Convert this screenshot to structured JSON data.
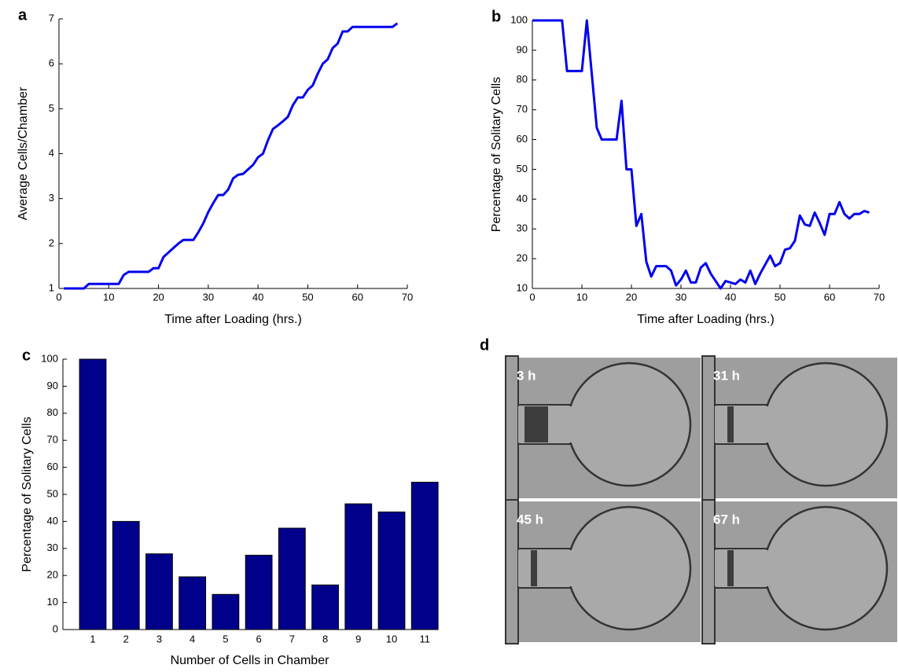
{
  "chart_data": [
    {
      "type": "line",
      "panel_label": "a",
      "xlabel": "Time after Loading (hrs.)",
      "ylabel": "Average Cells/Chamber",
      "xlim": [
        0,
        70
      ],
      "xticks": [
        0,
        10,
        20,
        30,
        40,
        50,
        60,
        70
      ],
      "ylim": [
        1,
        7
      ],
      "yticks": [
        1,
        2,
        3,
        4,
        5,
        6,
        7
      ],
      "series": [
        {
          "color": "#0000ee",
          "x": [
            1,
            2,
            3,
            4,
            5,
            6,
            7,
            8,
            9,
            10,
            11,
            12,
            13,
            14,
            15,
            16,
            17,
            18,
            19,
            20,
            21,
            22,
            23,
            24,
            25,
            26,
            27,
            28,
            29,
            30,
            31,
            32,
            33,
            34,
            35,
            36,
            37,
            38,
            39,
            40,
            41,
            42,
            43,
            44,
            45,
            46,
            47,
            48,
            49,
            50,
            51,
            52,
            53,
            54,
            55,
            56,
            57,
            58,
            59,
            60,
            61,
            62,
            63,
            64,
            65,
            66,
            67,
            68
          ],
          "values": [
            1.0,
            1.0,
            1.0,
            1.0,
            1.0,
            1.1,
            1.1,
            1.1,
            1.1,
            1.1,
            1.1,
            1.1,
            1.3,
            1.37,
            1.37,
            1.37,
            1.37,
            1.37,
            1.45,
            1.45,
            1.7,
            1.8,
            1.9,
            2.0,
            2.08,
            2.08,
            2.08,
            2.25,
            2.45,
            2.7,
            2.9,
            3.08,
            3.08,
            3.2,
            3.45,
            3.53,
            3.55,
            3.65,
            3.75,
            3.92,
            4.0,
            4.3,
            4.55,
            4.63,
            4.72,
            4.82,
            5.08,
            5.25,
            5.25,
            5.42,
            5.52,
            5.78,
            6.0,
            6.1,
            6.35,
            6.45,
            6.72,
            6.72,
            6.82,
            6.82,
            6.82,
            6.82,
            6.82,
            6.82,
            6.82,
            6.82,
            6.82,
            6.9
          ]
        }
      ]
    },
    {
      "type": "line",
      "panel_label": "b",
      "xlabel": "Time after Loading (hrs.)",
      "ylabel": "Percentage of Solitary Cells",
      "xlim": [
        0,
        70
      ],
      "xticks": [
        0,
        10,
        20,
        30,
        40,
        50,
        60,
        70
      ],
      "ylim": [
        10,
        100
      ],
      "yticks": [
        10,
        20,
        30,
        40,
        50,
        60,
        70,
        80,
        90,
        100
      ],
      "series": [
        {
          "color": "#0000ee",
          "x": [
            0,
            1,
            2,
            3,
            4,
            5,
            6,
            7,
            8,
            9,
            10,
            11,
            12,
            13,
            14,
            15,
            16,
            17,
            18,
            19,
            20,
            21,
            22,
            23,
            24,
            25,
            26,
            27,
            28,
            29,
            30,
            31,
            32,
            33,
            34,
            35,
            36,
            37,
            38,
            39,
            40,
            41,
            42,
            43,
            44,
            45,
            46,
            47,
            48,
            49,
            50,
            51,
            52,
            53,
            54,
            55,
            56,
            57,
            58,
            59,
            60,
            61,
            62,
            63,
            64,
            65,
            66,
            67,
            68
          ],
          "values": [
            100,
            100,
            100,
            100,
            100,
            100,
            100,
            83,
            83,
            83,
            83,
            100,
            82,
            64,
            60,
            60,
            60,
            60,
            73,
            50,
            50,
            31,
            35,
            19,
            14,
            17.5,
            17.5,
            17.5,
            16,
            11,
            13,
            16,
            12,
            12,
            17,
            18.5,
            15,
            12.5,
            10,
            12.5,
            12,
            11.5,
            13,
            12,
            16,
            11.5,
            15,
            18,
            21,
            17.5,
            18.5,
            23,
            23.5,
            26,
            34.5,
            31.5,
            31,
            35.5,
            32,
            28,
            35,
            35,
            39,
            35,
            33.5,
            35,
            35,
            36,
            35.5
          ]
        }
      ]
    },
    {
      "type": "bar",
      "panel_label": "c",
      "xlabel": "Number of Cells in Chamber",
      "ylabel": "Percentage of Solitary Cells",
      "categories": [
        "1",
        "2",
        "3",
        "4",
        "5",
        "6",
        "7",
        "8",
        "9",
        "10",
        "11"
      ],
      "color": "#00008b",
      "values": [
        100,
        40,
        28,
        19.5,
        13,
        27.5,
        37.5,
        16.5,
        46.5,
        43.5,
        54.5
      ],
      "ylim": [
        0,
        100
      ],
      "yticks": [
        0,
        10,
        20,
        30,
        40,
        50,
        60,
        70,
        80,
        90,
        100
      ]
    }
  ],
  "image_panel": {
    "panel_label": "d",
    "frames": [
      {
        "label": "3 h"
      },
      {
        "label": "31 h"
      },
      {
        "label": "45 h"
      },
      {
        "label": "67 h"
      }
    ]
  }
}
